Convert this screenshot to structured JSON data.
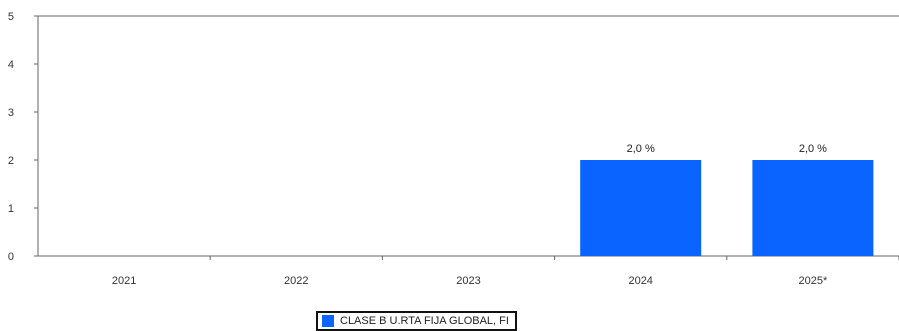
{
  "chart_data": {
    "type": "bar",
    "categories": [
      "2021",
      "2022",
      "2023",
      "2024",
      "2025*"
    ],
    "series": [
      {
        "name": "CLASE B U.RTA FIJA GLOBAL, FI",
        "values": [
          null,
          null,
          null,
          2.0,
          2.0
        ],
        "data_labels": [
          "",
          "",
          "",
          "2,0 %",
          "2,0 %"
        ],
        "color": "#0a64ff"
      }
    ],
    "ylim": [
      0,
      5
    ],
    "yticks": [
      "0",
      "1",
      "2",
      "3",
      "4",
      "5"
    ],
    "grid": false,
    "legend": "bottom-center"
  }
}
